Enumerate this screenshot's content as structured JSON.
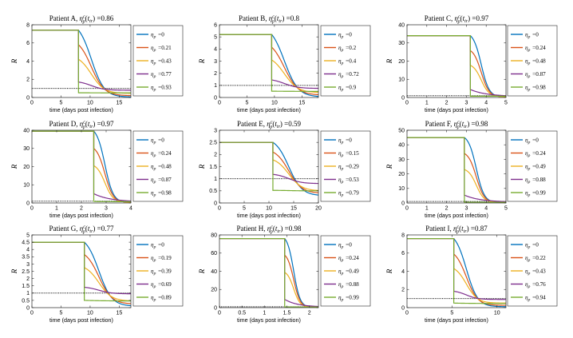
{
  "figure": {
    "title_prefix": "Patient",
    "eta_symbol": "η",
    "eta_subscript": "p",
    "equals_sign": "="
  },
  "colors": {
    "series": [
      "#0072bd",
      "#d95319",
      "#edb120",
      "#7e2f8e",
      "#77ac30"
    ],
    "threshold": "#000000",
    "axis": "#262626"
  },
  "chart_data": [
    {
      "type": "line",
      "title": "Patient A, ηpc(ttr) =0.86",
      "patient": "A",
      "eta_c": "0.86",
      "xlabel": "time (days post infection)",
      "ylabel": "R",
      "xlim": [
        0,
        17
      ],
      "ylim": [
        0,
        8
      ],
      "xticks": [
        0,
        5,
        10,
        15
      ],
      "yticks": [
        0,
        2,
        4,
        6,
        8
      ],
      "R0": 7.4,
      "t_treatment": 8.0,
      "t_mid": 10.2,
      "steepness": 0.9,
      "threshold": 1,
      "legend": [
        "0",
        "0.21",
        "0.43",
        "0.77",
        "0.93"
      ],
      "series": [
        {
          "name": "ηp =0",
          "eta": 0,
          "initial_drop_to": 7.4,
          "final": 0.05
        },
        {
          "name": "ηp =0.21",
          "eta": 0.21,
          "initial_drop_to": 5.8,
          "final": 0.2
        },
        {
          "name": "ηp =0.43",
          "eta": 0.43,
          "initial_drop_to": 4.2,
          "final": 0.45
        },
        {
          "name": "ηp =0.77",
          "eta": 0.77,
          "initial_drop_to": 1.7,
          "final": 0.8
        },
        {
          "name": "ηp =0.93",
          "eta": 0.93,
          "initial_drop_to": 0.52,
          "final": 0.5
        }
      ]
    },
    {
      "type": "line",
      "title": "Patient B, ηpc(ttr) =0.8",
      "patient": "B",
      "eta_c": "0.8",
      "xlabel": "time (days post infection)",
      "ylabel": "R",
      "xlim": [
        0,
        18
      ],
      "ylim": [
        0,
        6
      ],
      "xticks": [
        0,
        5,
        10,
        15
      ],
      "yticks": [
        0,
        1,
        2,
        3,
        4,
        5,
        6
      ],
      "R0": 5.2,
      "t_treatment": 9.5,
      "t_mid": 11.8,
      "steepness": 0.8,
      "threshold": 1,
      "legend": [
        "0",
        "0.2",
        "0.4",
        "0.72",
        "0.9"
      ],
      "series": [
        {
          "name": "ηp =0",
          "eta": 0,
          "initial_drop_to": 5.2,
          "final": 0.05
        },
        {
          "name": "ηp =0.2",
          "eta": 0.2,
          "initial_drop_to": 4.15,
          "final": 0.2
        },
        {
          "name": "ηp =0.4",
          "eta": 0.4,
          "initial_drop_to": 3.1,
          "final": 0.4
        },
        {
          "name": "ηp =0.72",
          "eta": 0.72,
          "initial_drop_to": 1.45,
          "final": 0.75
        },
        {
          "name": "ηp =0.9",
          "eta": 0.9,
          "initial_drop_to": 0.52,
          "final": 0.5
        }
      ]
    },
    {
      "type": "line",
      "title": "Patient C, ηpc(ttr) =0.97",
      "patient": "C",
      "eta_c": "0.97",
      "xlabel": "time (days post infection)",
      "ylabel": "R",
      "xlim": [
        0,
        5
      ],
      "ylim": [
        0,
        40
      ],
      "xticks": [
        0,
        1,
        2,
        3,
        4,
        5
      ],
      "yticks": [
        0,
        10,
        20,
        30,
        40
      ],
      "R0": 34,
      "t_treatment": 3.2,
      "t_mid": 3.75,
      "steepness": 5,
      "threshold": 1,
      "legend": [
        "0",
        "0.24",
        "0.48",
        "0.87",
        "0.98"
      ],
      "series": [
        {
          "name": "ηp =0",
          "eta": 0,
          "initial_drop_to": 34,
          "final": 0.2
        },
        {
          "name": "ηp =0.24",
          "eta": 0.24,
          "initial_drop_to": 25.8,
          "final": 0.3
        },
        {
          "name": "ηp =0.48",
          "eta": 0.48,
          "initial_drop_to": 17.7,
          "final": 0.4
        },
        {
          "name": "ηp =0.87",
          "eta": 0.87,
          "initial_drop_to": 4.4,
          "final": 0.6
        },
        {
          "name": "ηp =0.98",
          "eta": 0.98,
          "initial_drop_to": 0.7,
          "final": 0.7
        }
      ]
    },
    {
      "type": "line",
      "title": "Patient D, ηpc(ttr) =0.97",
      "patient": "D",
      "eta_c": "0.97",
      "xlabel": "time (days post infection)",
      "ylabel": "R",
      "xlim": [
        0,
        4
      ],
      "ylim": [
        0,
        40
      ],
      "xticks": [
        0,
        1,
        2,
        3,
        4
      ],
      "yticks": [
        0,
        10,
        20,
        30,
        40
      ],
      "R0": 39.5,
      "t_treatment": 2.5,
      "t_mid": 2.95,
      "steepness": 6,
      "threshold": 1,
      "legend": [
        "0",
        "0.24",
        "0.48",
        "0.87",
        "0.98"
      ],
      "series": [
        {
          "name": "ηp =0",
          "eta": 0,
          "initial_drop_to": 39.5,
          "final": 0.2
        },
        {
          "name": "ηp =0.24",
          "eta": 0.24,
          "initial_drop_to": 30,
          "final": 0.3
        },
        {
          "name": "ηp =0.48",
          "eta": 0.48,
          "initial_drop_to": 20.5,
          "final": 0.4
        },
        {
          "name": "ηp =0.87",
          "eta": 0.87,
          "initial_drop_to": 5.1,
          "final": 0.6
        },
        {
          "name": "ηp =0.98",
          "eta": 0.98,
          "initial_drop_to": 0.8,
          "final": 0.7
        }
      ]
    },
    {
      "type": "line",
      "title": "Patient E, ηpc(ttr) =0.59",
      "patient": "E",
      "eta_c": "0.59",
      "xlabel": "time (days post infection)",
      "ylabel": "R",
      "xlim": [
        0,
        20
      ],
      "ylim": [
        0,
        3
      ],
      "xticks": [
        0,
        5,
        10,
        15,
        20
      ],
      "yticks": [
        0,
        0.5,
        1,
        1.5,
        2,
        2.5,
        3
      ],
      "R0": 2.5,
      "t_treatment": 10.8,
      "t_mid": 14.0,
      "steepness": 0.75,
      "threshold": 1,
      "legend": [
        "0",
        "0.15",
        "0.29",
        "0.53",
        "0.79"
      ],
      "series": [
        {
          "name": "ηp =0",
          "eta": 0,
          "initial_drop_to": 2.5,
          "final": 0.3
        },
        {
          "name": "ηp =0.15",
          "eta": 0.15,
          "initial_drop_to": 2.1,
          "final": 0.4
        },
        {
          "name": "ηp =0.29",
          "eta": 0.29,
          "initial_drop_to": 1.78,
          "final": 0.5
        },
        {
          "name": "ηp =0.53",
          "eta": 0.53,
          "initial_drop_to": 1.18,
          "final": 0.8
        },
        {
          "name": "ηp =0.79",
          "eta": 0.79,
          "initial_drop_to": 0.52,
          "final": 0.5
        }
      ]
    },
    {
      "type": "line",
      "title": "Patient F, ηpc(ttr) =0.98",
      "patient": "F",
      "eta_c": "0.98",
      "xlabel": "time (days post infection)",
      "ylabel": "R",
      "xlim": [
        0,
        5
      ],
      "ylim": [
        0,
        50
      ],
      "xticks": [
        0,
        1,
        2,
        3,
        4,
        5
      ],
      "yticks": [
        0,
        10,
        20,
        30,
        40,
        50
      ],
      "R0": 45,
      "t_treatment": 2.9,
      "t_mid": 3.5,
      "steepness": 5,
      "threshold": 1,
      "legend": [
        "0",
        "0.24",
        "0.49",
        "0.88",
        "0.99"
      ],
      "series": [
        {
          "name": "ηp =0",
          "eta": 0,
          "initial_drop_to": 45,
          "final": 0.2
        },
        {
          "name": "ηp =0.24",
          "eta": 0.24,
          "initial_drop_to": 34,
          "final": 0.3
        },
        {
          "name": "ηp =0.49",
          "eta": 0.49,
          "initial_drop_to": 23,
          "final": 0.4
        },
        {
          "name": "ηp =0.88",
          "eta": 0.88,
          "initial_drop_to": 5.4,
          "final": 0.6
        },
        {
          "name": "ηp =0.99",
          "eta": 0.99,
          "initial_drop_to": 0.5,
          "final": 0.5
        }
      ]
    },
    {
      "type": "line",
      "title": "Patient G, ηpc(ttr) =0.77",
      "patient": "G",
      "eta_c": "0.77",
      "xlabel": "time (days post infection)",
      "ylabel": "R",
      "xlim": [
        0,
        17
      ],
      "ylim": [
        0,
        5
      ],
      "xticks": [
        0,
        5,
        10,
        15
      ],
      "yticks": [
        0,
        0.5,
        1,
        1.5,
        2,
        2.5,
        3,
        3.5,
        4,
        4.5,
        5
      ],
      "R0": 4.5,
      "t_treatment": 9.0,
      "t_mid": 11.5,
      "steepness": 0.9,
      "threshold": 1,
      "legend": [
        "0",
        "0.19",
        "0.39",
        "0.69",
        "0.89"
      ],
      "series": [
        {
          "name": "ηp =0",
          "eta": 0,
          "initial_drop_to": 4.5,
          "final": 0.1
        },
        {
          "name": "ηp =0.19",
          "eta": 0.19,
          "initial_drop_to": 3.65,
          "final": 0.25
        },
        {
          "name": "ηp =0.39",
          "eta": 0.39,
          "initial_drop_to": 2.75,
          "final": 0.45
        },
        {
          "name": "ηp =0.69",
          "eta": 0.69,
          "initial_drop_to": 1.4,
          "final": 0.95
        },
        {
          "name": "ηp =0.89",
          "eta": 0.89,
          "initial_drop_to": 0.5,
          "final": 0.45
        }
      ]
    },
    {
      "type": "line",
      "title": "Patient H, ηpc(ttr) =0.98",
      "patient": "H",
      "eta_c": "0.98",
      "xlabel": "time (days post infection)",
      "ylabel": "R",
      "xlim": [
        0,
        2.2
      ],
      "ylim": [
        0,
        80
      ],
      "xticks": [
        0,
        0.5,
        1,
        1.5,
        2
      ],
      "yticks": [
        0,
        20,
        40,
        60,
        80
      ],
      "R0": 76,
      "t_treatment": 1.45,
      "t_mid": 1.65,
      "steepness": 14,
      "threshold": 1,
      "legend": [
        "0",
        "0.24",
        "0.49",
        "0.88",
        "0.99"
      ],
      "series": [
        {
          "name": "ηp =0",
          "eta": 0,
          "initial_drop_to": 76,
          "final": 0.3
        },
        {
          "name": "ηp =0.24",
          "eta": 0.24,
          "initial_drop_to": 57.8,
          "final": 0.4
        },
        {
          "name": "ηp =0.49",
          "eta": 0.49,
          "initial_drop_to": 38.8,
          "final": 0.5
        },
        {
          "name": "ηp =0.88",
          "eta": 0.88,
          "initial_drop_to": 9.1,
          "final": 0.7
        },
        {
          "name": "ηp =0.99",
          "eta": 0.99,
          "initial_drop_to": 0.8,
          "final": 0.7
        }
      ]
    },
    {
      "type": "line",
      "title": "Patient I, ηpc(ttr) =0.87",
      "patient": "I",
      "eta_c": "0.87",
      "xlabel": "time (days post infection)",
      "ylabel": "R",
      "xlim": [
        0,
        11
      ],
      "ylim": [
        0,
        8
      ],
      "xticks": [
        0,
        5,
        10
      ],
      "yticks": [
        0,
        2,
        4,
        6,
        8
      ],
      "R0": 7.6,
      "t_treatment": 5.2,
      "t_mid": 6.6,
      "steepness": 1.6,
      "threshold": 1,
      "legend": [
        "0",
        "0.22",
        "0.43",
        "0.76",
        "0.94"
      ],
      "series": [
        {
          "name": "ηp =0",
          "eta": 0,
          "initial_drop_to": 7.6,
          "final": 0.1
        },
        {
          "name": "ηp =0.22",
          "eta": 0.22,
          "initial_drop_to": 5.9,
          "final": 0.25
        },
        {
          "name": "ηp =0.43",
          "eta": 0.43,
          "initial_drop_to": 4.3,
          "final": 0.5
        },
        {
          "name": "ηp =0.76",
          "eta": 0.76,
          "initial_drop_to": 1.8,
          "final": 0.9
        },
        {
          "name": "ηp =0.94",
          "eta": 0.94,
          "initial_drop_to": 0.5,
          "final": 0.45
        }
      ]
    }
  ]
}
